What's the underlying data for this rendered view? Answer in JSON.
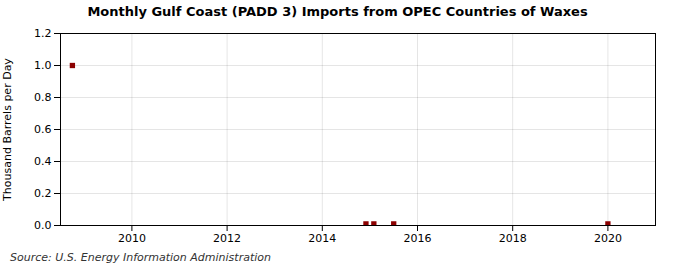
{
  "chart_data": {
    "type": "scatter",
    "title": "Monthly Gulf Coast (PADD 3) Imports from OPEC Countries of Waxes",
    "ylabel": "Thousand Barrels per Day",
    "source": "Source: U.S. Energy Information Administration",
    "x": [
      2008.75,
      2014.917,
      2015.083,
      2015.5,
      2020.0
    ],
    "values": [
      1.0,
      0.01,
      0.01,
      0.01,
      0.01
    ],
    "color": "#8b0000",
    "marker": "square",
    "xlim": [
      2008.5,
      2021.0
    ],
    "xticks": [
      2010,
      2012,
      2014,
      2016,
      2018,
      2020
    ],
    "ylim": [
      0.0,
      1.2
    ],
    "yticks": [
      {
        "value": 0.0,
        "label": "0.0"
      },
      0.2,
      0.4,
      0.6,
      0.8,
      {
        "value": 1.0,
        "label": "1.0"
      },
      1.2
    ],
    "grid": true
  }
}
